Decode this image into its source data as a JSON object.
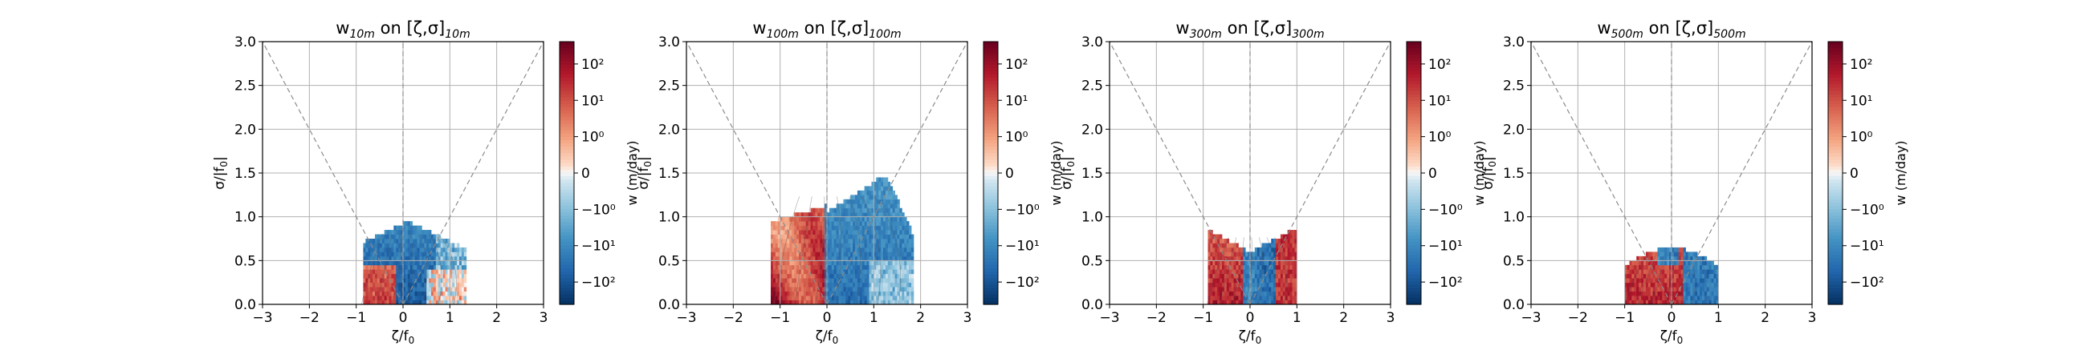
{
  "chart_data": [
    {
      "type": "heatmap",
      "title": "w10m on [ζ,σ]10m",
      "title_parts": {
        "var": "w",
        "var_sub": "10m",
        "mid": " on [ζ,σ]",
        "end_sub": "10m"
      },
      "xlabel": "ζ/f0",
      "ylabel": "σ/|f0|",
      "xlim": [
        -3,
        3
      ],
      "ylim": [
        0,
        3
      ],
      "xticks": [
        "−3",
        "−2",
        "−1",
        "0",
        "1",
        "2",
        "3"
      ],
      "yticks": [
        "0.0",
        "0.5",
        "1.0",
        "1.5",
        "2.0",
        "2.5",
        "3.0"
      ],
      "grid": true,
      "colorbar_label": "w (m/day)",
      "colorbar_ticks": [
        "10²",
        "10¹",
        "10⁰",
        "0",
        "−10⁰",
        "−10¹",
        "−10²"
      ],
      "reference_lines": [
        "ζ = 0",
        "σ = |ζ|"
      ],
      "dominant_sign": "negative",
      "data_extent": {
        "x": [
          -0.9,
          1.4
        ],
        "y": [
          0,
          0.95
        ]
      }
    },
    {
      "type": "heatmap",
      "title": "w100m on [ζ,σ]100m",
      "title_parts": {
        "var": "w",
        "var_sub": "100m",
        "mid": " on [ζ,σ]",
        "end_sub": "100m"
      },
      "xlabel": "ζ/f0",
      "ylabel": "σ/|f0|",
      "xlim": [
        -3,
        3
      ],
      "ylim": [
        0,
        3
      ],
      "xticks": [
        "−3",
        "−2",
        "−1",
        "0",
        "1",
        "2",
        "3"
      ],
      "yticks": [
        "0.0",
        "0.5",
        "1.0",
        "1.5",
        "2.0",
        "2.5",
        "3.0"
      ],
      "grid": true,
      "colorbar_label": "w (m/day)",
      "colorbar_ticks": [
        "10²",
        "10¹",
        "10⁰",
        "0",
        "−10⁰",
        "−10¹",
        "−10²"
      ],
      "reference_lines": [
        "ζ = 0",
        "σ = |ζ|"
      ],
      "dominant_sign": "mixed",
      "data_extent": {
        "x": [
          -1.2,
          1.9
        ],
        "y": [
          0,
          1.45
        ]
      }
    },
    {
      "type": "heatmap",
      "title": "w300m on [ζ,σ]300m",
      "title_parts": {
        "var": "w",
        "var_sub": "300m",
        "mid": " on [ζ,σ]",
        "end_sub": "300m"
      },
      "xlabel": "ζ/f0",
      "ylabel": "σ/|f0|",
      "xlim": [
        -3,
        3
      ],
      "ylim": [
        0,
        3
      ],
      "xticks": [
        "−3",
        "−2",
        "−1",
        "0",
        "1",
        "2",
        "3"
      ],
      "yticks": [
        "0.0",
        "0.5",
        "1.0",
        "1.5",
        "2.0",
        "2.5",
        "3.0"
      ],
      "grid": true,
      "colorbar_label": "w (m/day)",
      "colorbar_ticks": [
        "10²",
        "10¹",
        "10⁰",
        "0",
        "−10⁰",
        "−10¹",
        "−10²"
      ],
      "reference_lines": [
        "ζ = 0",
        "σ = |ζ|"
      ],
      "dominant_sign": "mixed",
      "data_extent": {
        "x": [
          -0.9,
          1.0
        ],
        "y": [
          0,
          0.9
        ]
      }
    },
    {
      "type": "heatmap",
      "title": "w500m on [ζ,σ]500m",
      "title_parts": {
        "var": "w",
        "var_sub": "500m",
        "mid": " on [ζ,σ]",
        "end_sub": "500m"
      },
      "xlabel": "ζ/f0",
      "ylabel": "σ/|f0|",
      "xlim": [
        -3,
        3
      ],
      "ylim": [
        0,
        3
      ],
      "xticks": [
        "−3",
        "−2",
        "−1",
        "0",
        "1",
        "2",
        "3"
      ],
      "yticks": [
        "0.0",
        "0.5",
        "1.0",
        "1.5",
        "2.0",
        "2.5",
        "3.0"
      ],
      "grid": true,
      "colorbar_label": "w (m/day)",
      "colorbar_ticks": [
        "10²",
        "10¹",
        "10⁰",
        "0",
        "−10⁰",
        "−10¹",
        "−10²"
      ],
      "reference_lines": [
        "ζ = 0",
        "σ = |ζ|"
      ],
      "dominant_sign": "mixed",
      "data_extent": {
        "x": [
          -1.0,
          1.0
        ],
        "y": [
          0,
          0.65
        ]
      }
    }
  ],
  "colors": {
    "negative_strong": "#053061",
    "negative": "#2166ac",
    "negative_light": "#92c5de",
    "neutral": "#f7f7f7",
    "positive_light": "#f4a582",
    "positive": "#d6604d",
    "positive_strong": "#67001f",
    "grid": "#b0b0b0",
    "reference_line": "#8c8c8c"
  }
}
